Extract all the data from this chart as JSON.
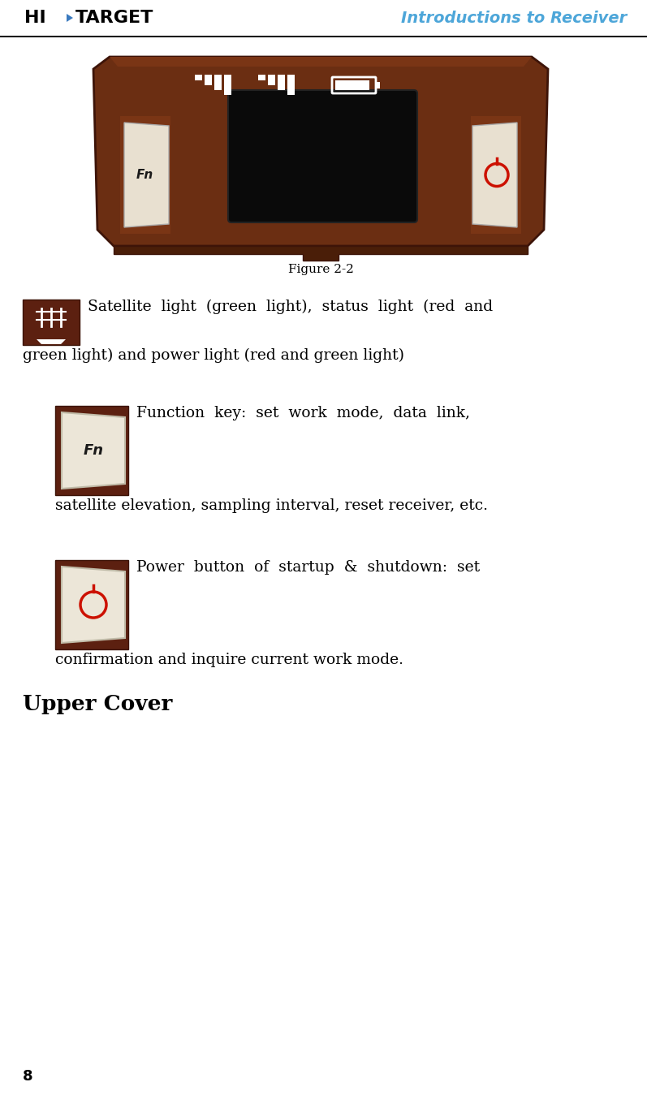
{
  "bg_color": "#ffffff",
  "brown": "#5c2010",
  "dark_brown": "#3d1408",
  "mid_brown": "#7a3515",
  "light_brown": "#6b2e12",
  "header_title": "Introductions to Receiver",
  "header_title_color": "#4da6d9",
  "logo_arrow_color": "#3a7abf",
  "header_line_color": "#1a1a1a",
  "figure_caption": "Figure 2-2",
  "sat_text1": "Satellite  light  (green  light),  status  light  (red  and",
  "sat_text2": "green light) and power light (red and green light)",
  "fn_text1": "Function  key:  set  work  mode,  data  link,",
  "fn_text2": "satellite elevation, sampling interval, reset receiver, etc.",
  "pw_text1": "Power  button  of  startup  &  shutdown:  set",
  "pw_text2": "confirmation and inquire current work mode.",
  "upper_cover": "Upper Cover",
  "page_num": "8",
  "body_fs": 13.5,
  "serif_font": "DejaVu Serif"
}
